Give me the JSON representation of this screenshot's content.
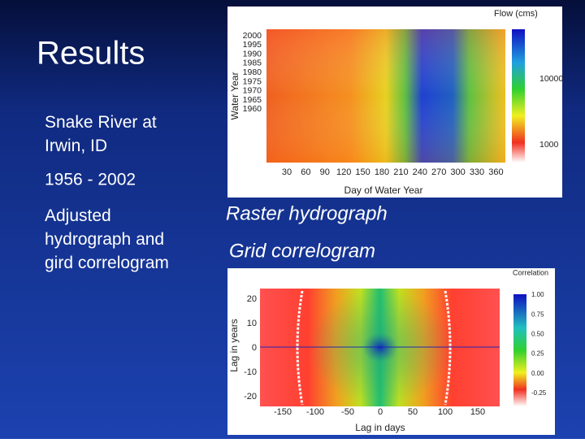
{
  "title": "Results",
  "bullets": [
    "Snake River at Irwin, ID",
    "1956 - 2002",
    "Adjusted hydrograph and gird correlogram"
  ],
  "captions": [
    "Raster hydrograph",
    "Grid correlogram"
  ],
  "figures": [
    {
      "colorbar_title": "Flow (cms)",
      "y_label": "Water Year",
      "x_label": "Day of Water Year",
      "y_ticks": [
        "2000",
        "1995",
        "1990",
        "1985",
        "1980",
        "1975",
        "1970",
        "1965",
        "1960"
      ],
      "x_ticks": [
        "30",
        "60",
        "90",
        "120",
        "150",
        "180",
        "210",
        "240",
        "270",
        "300",
        "330",
        "360"
      ],
      "colorbar_ticks": [
        "10000",
        "1000"
      ]
    },
    {
      "colorbar_title": "Correlation",
      "y_label": "Lag in years",
      "x_label": "Lag in days",
      "y_ticks": [
        "20",
        "10",
        "0",
        "-10",
        "-20"
      ],
      "x_ticks": [
        "-150",
        "-100",
        "-50",
        "0",
        "50",
        "100",
        "150"
      ],
      "colorbar_ticks": [
        "1.00",
        "0.75",
        "0.50",
        "0.25",
        "0.00",
        "-0.25"
      ]
    }
  ]
}
